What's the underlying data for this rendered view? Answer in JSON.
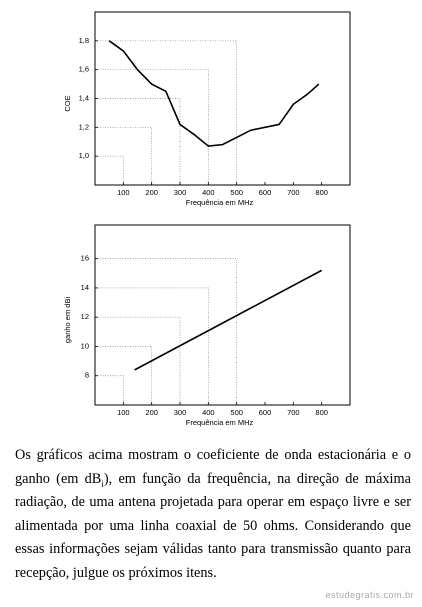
{
  "chart_data": [
    {
      "type": "line",
      "x_label": "Frequência em MHz",
      "y_label": "COE",
      "xlim": [
        0,
        900
      ],
      "xticks": [
        100,
        200,
        300,
        400,
        500,
        600,
        700,
        800
      ],
      "ylim": [
        0.8,
        2.0
      ],
      "yticks": [
        {
          "value": 1.0,
          "label": "1,0"
        },
        {
          "value": 1.2,
          "label": "1,2"
        },
        {
          "value": 1.4,
          "label": "1,4"
        },
        {
          "value": 1.6,
          "label": "1,6"
        },
        {
          "value": 1.8,
          "label": "1,8"
        }
      ],
      "color": "#000000",
      "x": [
        50,
        100,
        150,
        200,
        250,
        300,
        350,
        400,
        450,
        500,
        550,
        600,
        650,
        700,
        750,
        790
      ],
      "values": [
        1.8,
        1.73,
        1.6,
        1.5,
        1.45,
        1.22,
        1.15,
        1.07,
        1.08,
        1.13,
        1.18,
        1.2,
        1.22,
        1.36,
        1.43,
        1.5
      ]
    },
    {
      "type": "line",
      "x_label": "Frequência em MHz",
      "y_label": "ganho em dBi",
      "xlim": [
        0,
        900
      ],
      "xticks": [
        100,
        200,
        300,
        400,
        500,
        600,
        700,
        800
      ],
      "ylim": [
        6,
        18.3
      ],
      "yticks": [
        8,
        10,
        12,
        14,
        16
      ],
      "color": "#000000",
      "x": [
        140,
        800
      ],
      "values": [
        8.4,
        15.2
      ]
    }
  ],
  "paragraph": [
    "Os gráficos acima mostram o coeficiente de onda estacionária e o ganho (em dB",
    "i",
    "), em função da frequência, na direção de máxima radiação, de uma antena projetada para operar em espaço livre e ser alimentada por uma linha coaxial de 50 ohms. Considerando que essas informações sejam válidas tanto para transmissão quanto para recepção, julgue os próximos itens."
  ],
  "watermark": "estudegratis.com.br"
}
